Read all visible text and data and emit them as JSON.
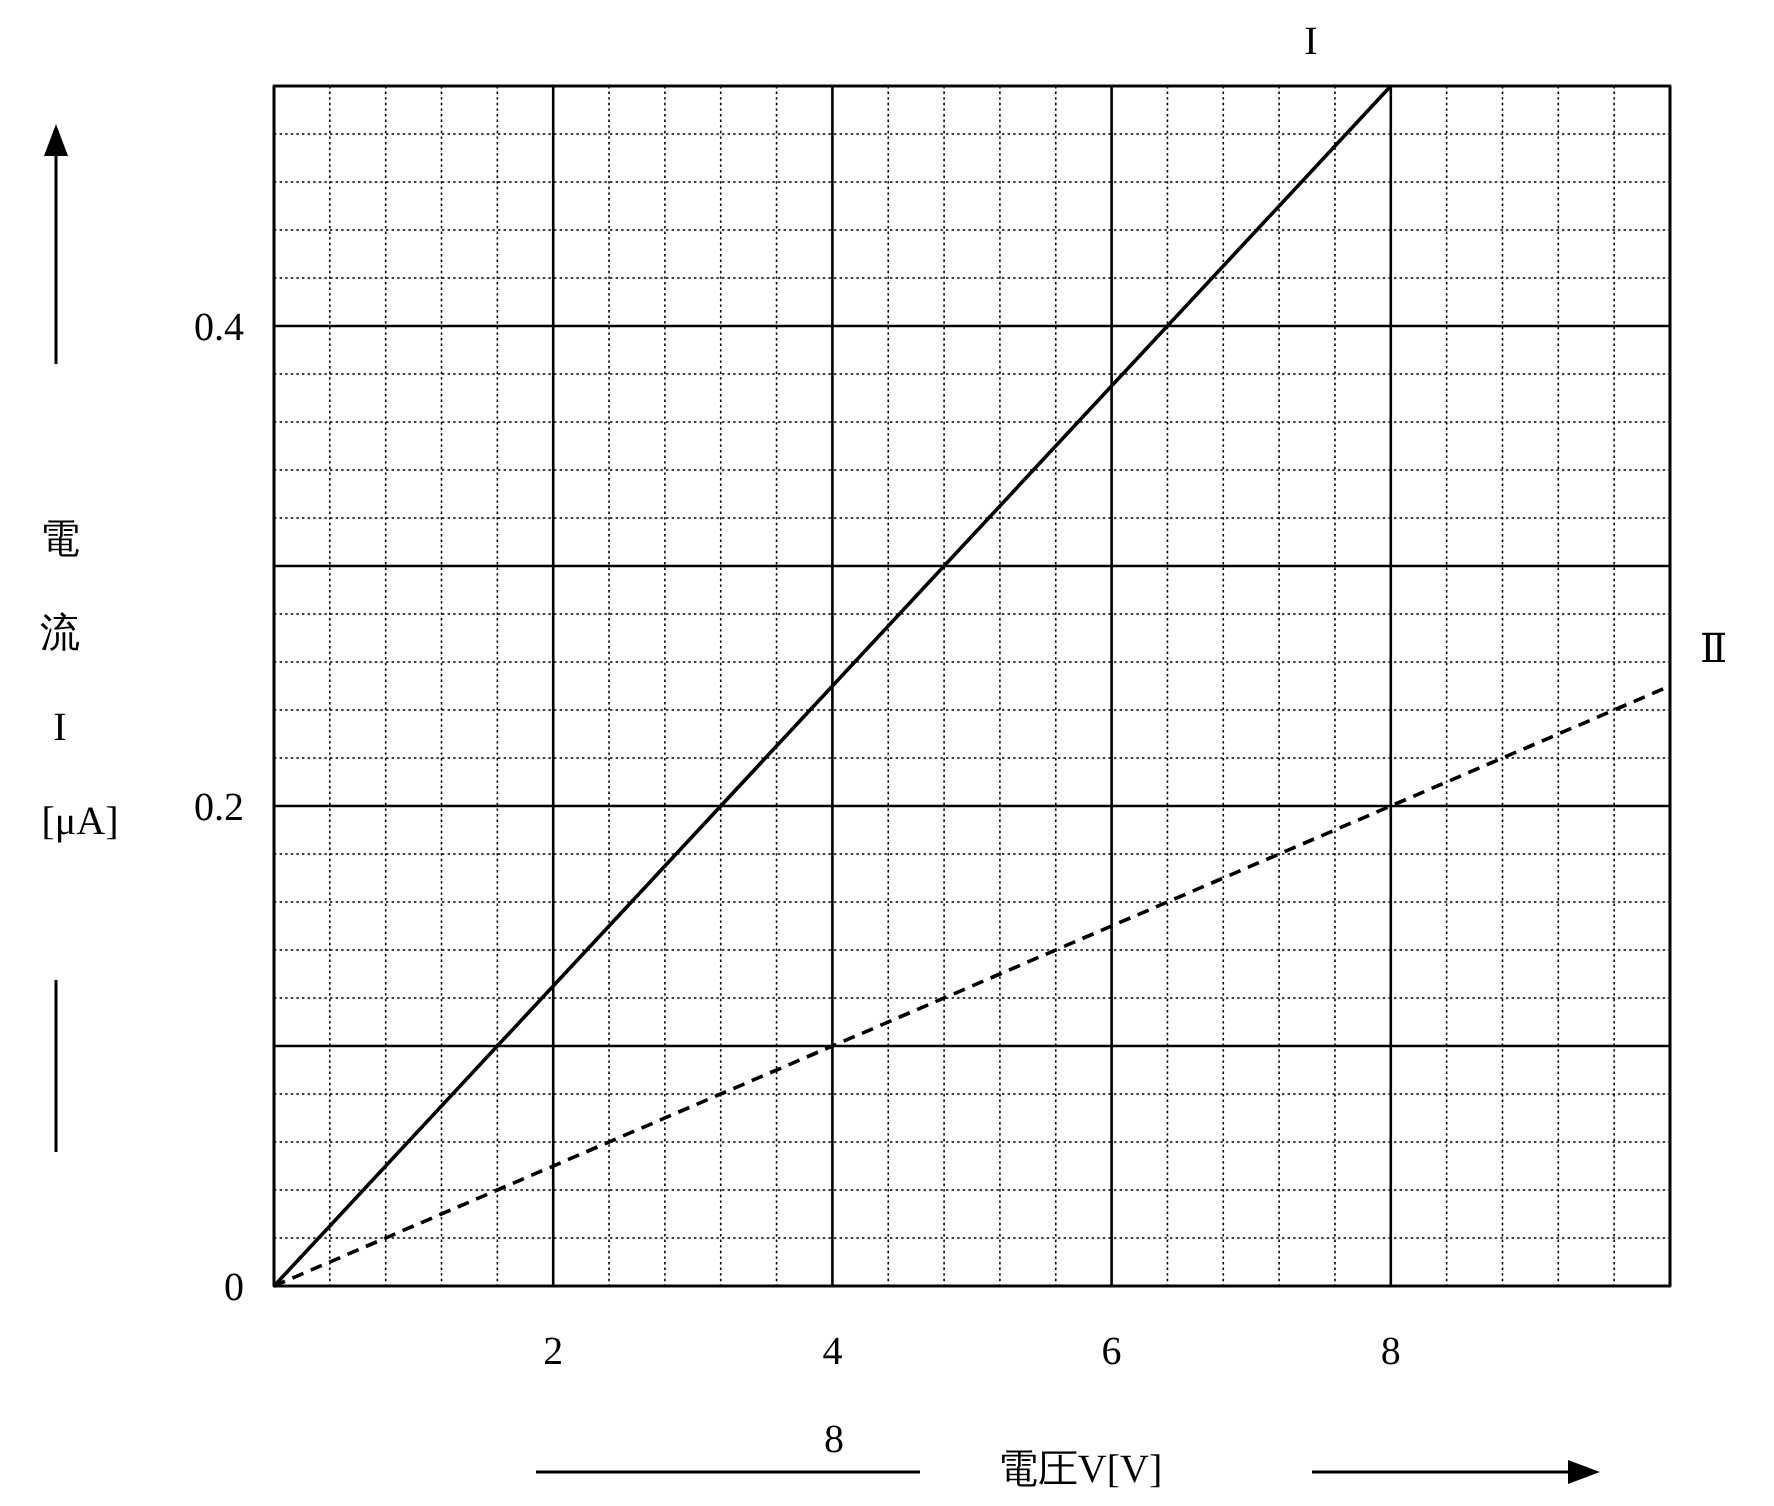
{
  "chart_data": {
    "type": "line",
    "xlabel": "電圧V[V]",
    "ylabel": "電流 I [μA]",
    "xlim": [
      0,
      10
    ],
    "ylim": [
      0,
      0.5
    ],
    "xticks": [
      {
        "value": 0,
        "label": null
      },
      2,
      4,
      6,
      8,
      {
        "value": 10,
        "label": null
      }
    ],
    "yticks": [
      0,
      {
        "value": 0.1,
        "label": null
      },
      0.2,
      {
        "value": 0.3,
        "label": null
      },
      0.4,
      {
        "value": 0.5,
        "label": null
      }
    ],
    "grid": true,
    "series": [
      {
        "name": "I",
        "color": "#000000",
        "x": [
          0,
          8
        ],
        "values": [
          0,
          0.5
        ],
        "line_style": "solid"
      },
      {
        "name": "Ⅱ",
        "color": "#000000",
        "x": [
          0,
          10
        ],
        "values": [
          0,
          0.25
        ],
        "line_style": "dashed"
      }
    ],
    "annotations": [
      "8"
    ]
  }
}
